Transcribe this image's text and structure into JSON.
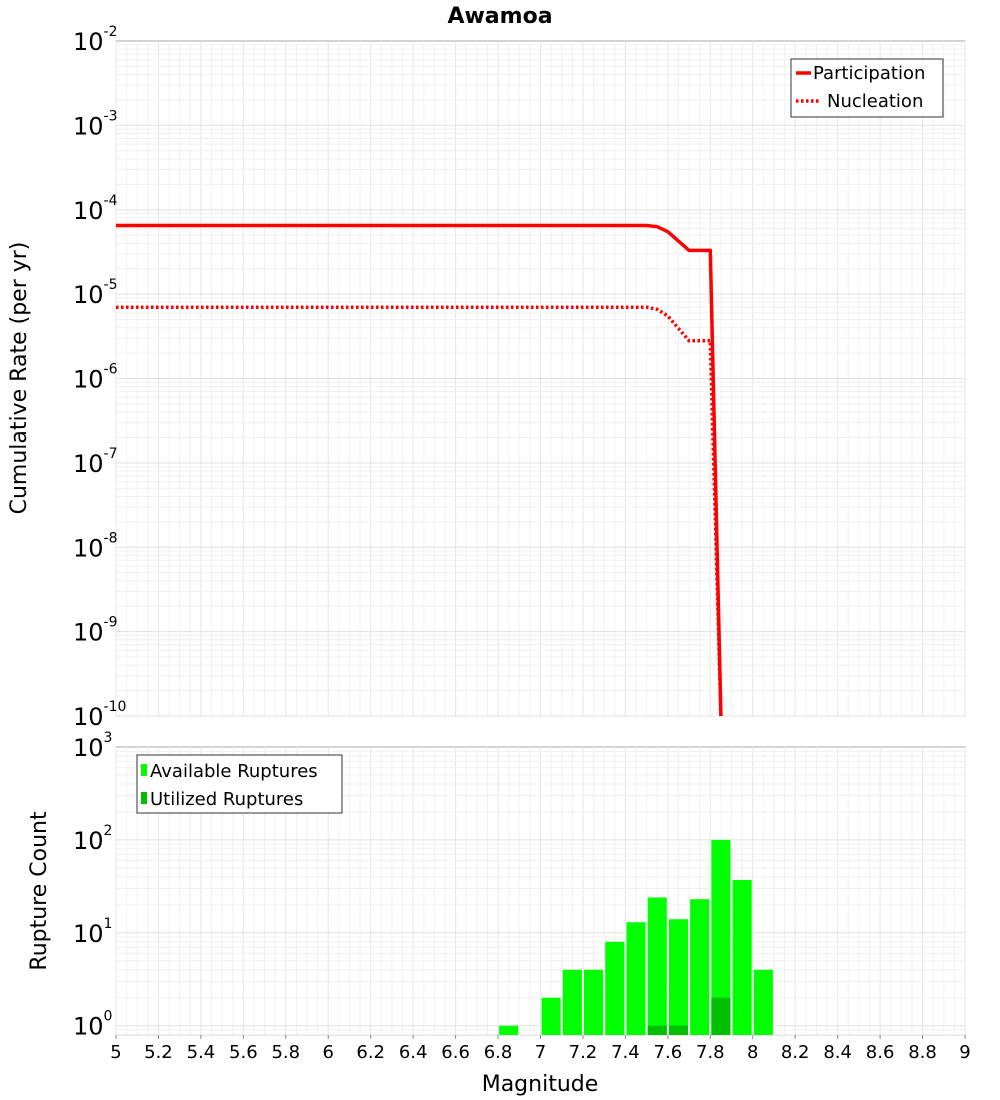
{
  "chart_data": [
    {
      "type": "line",
      "title": "Awamoa",
      "xlabel": "",
      "ylabel": "Cumulative Rate (per yr)",
      "yscale": "log",
      "xlim": [
        5,
        9
      ],
      "ylim_exp": [
        -10,
        -2
      ],
      "ytick_base": "10",
      "yticks_exp": [
        "-10",
        "-9",
        "-8",
        "-7",
        "-6",
        "-5",
        "-4",
        "-3",
        "-2"
      ],
      "grid": true,
      "legend": "top-right",
      "series": [
        {
          "name": "Participation",
          "color": "#ff0000",
          "style": "solid",
          "x": [
            5.0,
            7.5,
            7.55,
            7.6,
            7.7,
            7.8,
            7.85
          ],
          "y": [
            6.5e-05,
            6.5e-05,
            6.3e-05,
            5.5e-05,
            3.3e-05,
            3.3e-05,
            1e-10
          ]
        },
        {
          "name": "Nucleation",
          "color": "#ff0000",
          "style": "dotted",
          "x": [
            5.0,
            7.5,
            7.55,
            7.6,
            7.7,
            7.8,
            7.85
          ],
          "y": [
            7e-06,
            7e-06,
            6.6e-06,
            5.5e-06,
            2.8e-06,
            2.8e-06,
            1e-10
          ]
        }
      ]
    },
    {
      "type": "bar",
      "xlabel": "Magnitude",
      "ylabel": "Rupture Count",
      "yscale": "log",
      "xlim": [
        5,
        9
      ],
      "ylim_exp": [
        -0.1,
        3
      ],
      "ytick_base": "10",
      "yticks_exp": [
        "0",
        "1",
        "2",
        "3"
      ],
      "xticks": [
        "5",
        "5.2",
        "5.4",
        "5.6",
        "5.8",
        "6",
        "6.2",
        "6.4",
        "6.6",
        "6.8",
        "7",
        "7.2",
        "7.4",
        "7.6",
        "7.8",
        "8",
        "8.2",
        "8.4",
        "8.6",
        "8.8",
        "9"
      ],
      "bar_width": 0.09,
      "grid": true,
      "legend": "top-left",
      "series": [
        {
          "name": "Available Ruptures",
          "color": "#00ff00",
          "x": [
            6.85,
            7.05,
            7.15,
            7.25,
            7.35,
            7.45,
            7.55,
            7.65,
            7.75,
            7.85,
            7.95,
            8.05
          ],
          "values": [
            1,
            2,
            4,
            4,
            8,
            13,
            24,
            14,
            23,
            100,
            37,
            4
          ]
        },
        {
          "name": "Utilized Ruptures",
          "color": "#00c000",
          "x": [
            7.55,
            7.65,
            7.85
          ],
          "values": [
            1,
            1,
            2
          ]
        }
      ]
    }
  ]
}
